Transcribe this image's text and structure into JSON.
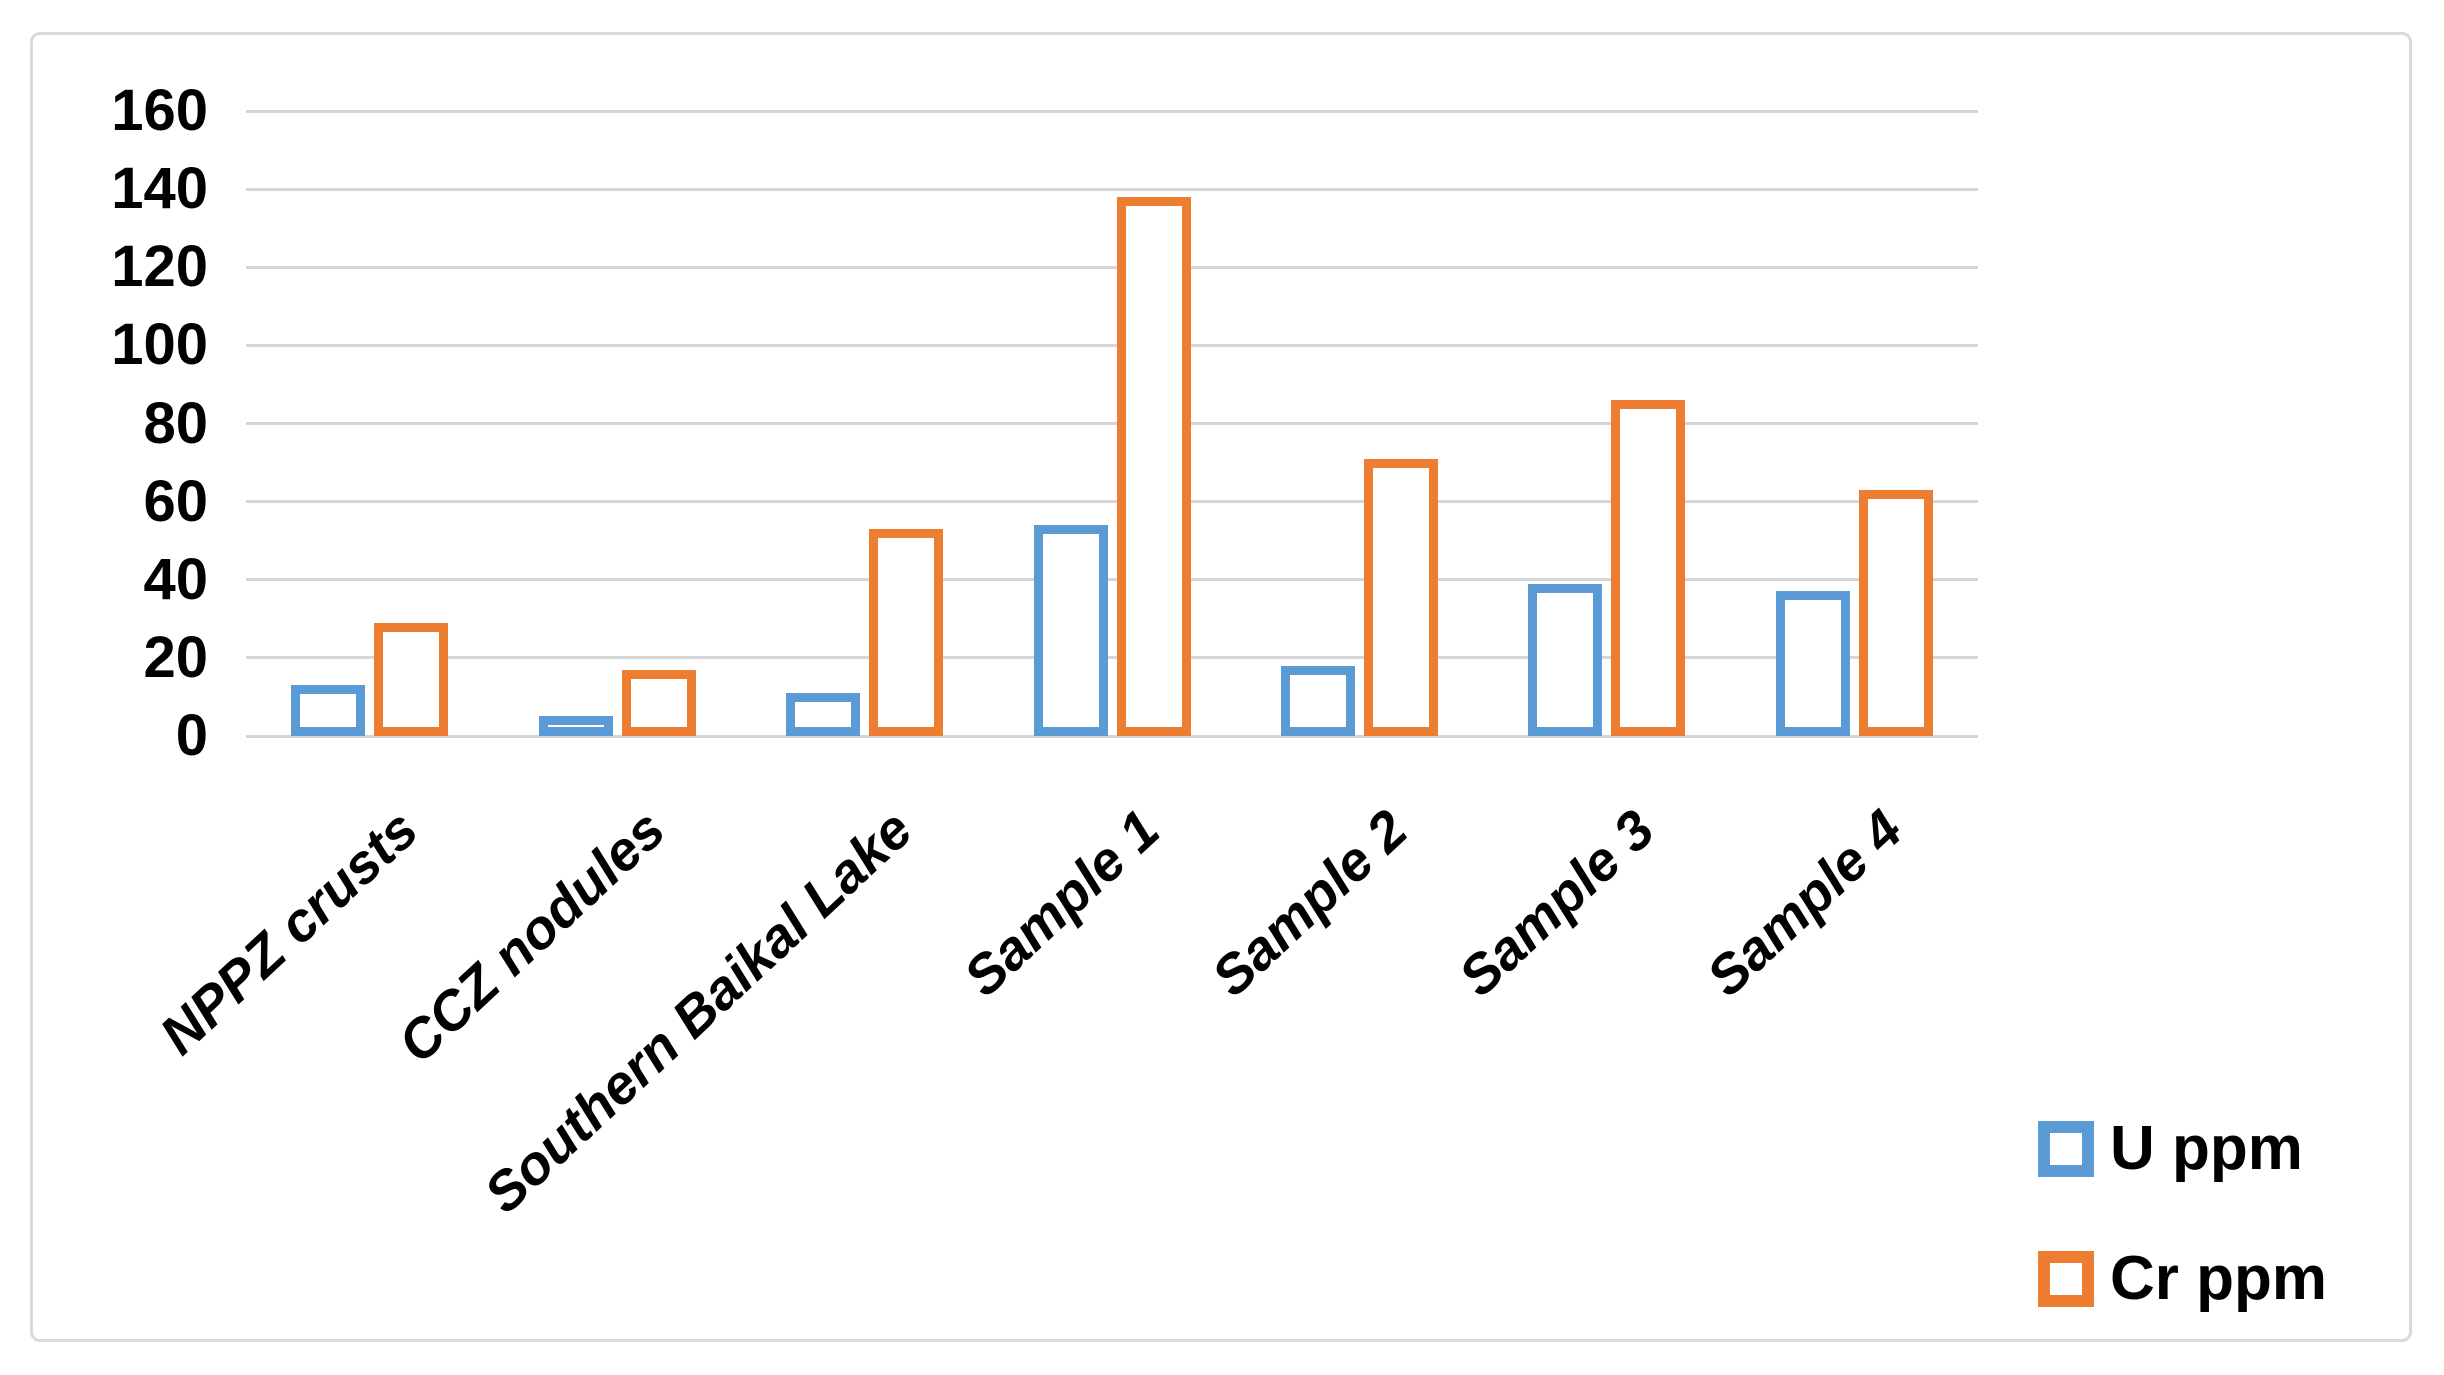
{
  "chart_data": {
    "type": "bar",
    "title": "",
    "xlabel": "",
    "ylabel": "",
    "categories": [
      "NPPZ crusts",
      "CCZ nodules",
      "Southern Baikal Lake",
      "Sample 1",
      "Sample 2",
      "Sample 3",
      "Sample 4"
    ],
    "series": [
      {
        "name": "U ppm",
        "color": "#5B9BD5",
        "values": [
          13,
          5,
          11,
          54,
          18,
          39,
          37
        ]
      },
      {
        "name": "Cr ppm",
        "color": "#ED7D31",
        "values": [
          29,
          17,
          53,
          138,
          71,
          86,
          63
        ]
      }
    ],
    "ylim": [
      0,
      160
    ],
    "yticks": [
      0,
      20,
      40,
      60,
      80,
      100,
      120,
      140,
      160
    ],
    "grid": true,
    "bar_style": "hollow-outline",
    "legend_position": "bottom-right",
    "colors": {
      "gridline": "#D6D6D6",
      "frame_border": "#D9D9D9",
      "text": "#000000",
      "background": "#FFFFFF"
    }
  }
}
